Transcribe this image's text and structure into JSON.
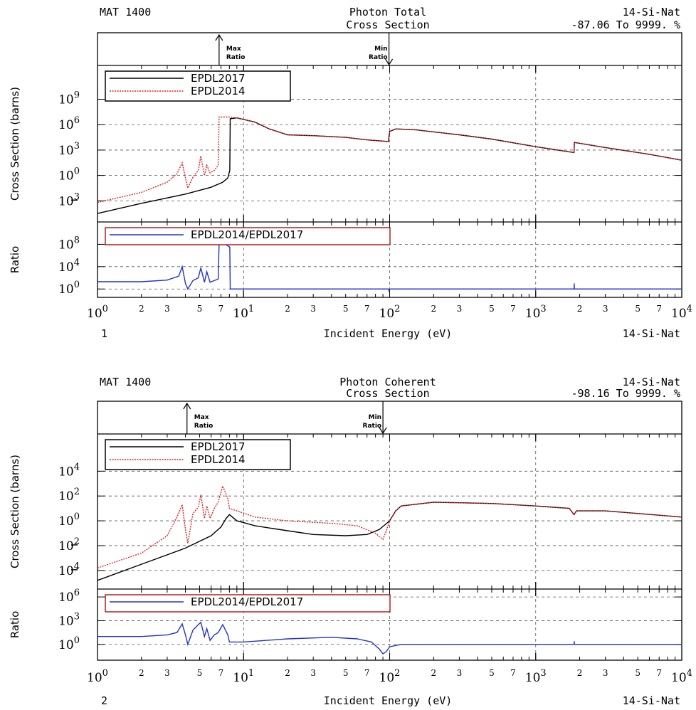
{
  "chart_data": [
    {
      "type": "line",
      "panel_id": "1",
      "mat": "MAT 1400",
      "title_line1": "Photon Total",
      "title_line2": "Cross Section",
      "range_text": "-87.06 To 9999. %",
      "material": "14-Si-Nat",
      "xlabel": "Incident Energy (eV)",
      "ylabel_top": "Cross Section (barns)",
      "ylabel_bottom": "Ratio",
      "x_scale": "log",
      "xlim": [
        1,
        10000
      ],
      "grid": true,
      "markers": [
        {
          "label1": "Max",
          "label2": "Ratio",
          "x": 6.8,
          "dir": "up"
        },
        {
          "label1": "Min",
          "label2": "Ratio",
          "x": 99,
          "dir": "down"
        }
      ],
      "top": {
        "y_scale": "log",
        "ylim_exp": [
          -5.5,
          13
        ],
        "ytick_exps": [
          -3,
          0,
          3,
          6,
          9
        ],
        "legend": [
          "EPDL2017",
          "EPDL2014"
        ],
        "series": [
          {
            "name": "EPDL2017",
            "color": "#000000",
            "points": [
              [
                1,
                -4.5
              ],
              [
                2,
                -3.3
              ],
              [
                4,
                -2.2
              ],
              [
                6,
                -1.4
              ],
              [
                7.2,
                -0.8
              ],
              [
                7.8,
                -0.3
              ],
              [
                8.05,
                0.6
              ],
              [
                8.1,
                6.7
              ],
              [
                9,
                6.8
              ],
              [
                12,
                6.3
              ],
              [
                15,
                5.5
              ],
              [
                20,
                4.8
              ],
              [
                30,
                4.7
              ],
              [
                50,
                4.5
              ],
              [
                70,
                4.2
              ],
              [
                98,
                4.0
              ],
              [
                100,
                5.2
              ],
              [
                110,
                5.5
              ],
              [
                150,
                5.4
              ],
              [
                300,
                4.8
              ],
              [
                500,
                4.3
              ],
              [
                1000,
                3.4
              ],
              [
                1830,
                2.7
              ],
              [
                1840,
                3.9
              ],
              [
                3000,
                3.3
              ],
              [
                6000,
                2.5
              ],
              [
                10000,
                1.8
              ]
            ]
          },
          {
            "name": "EPDL2014",
            "color": "#dd2222",
            "points": [
              [
                1,
                -3.2
              ],
              [
                2,
                -2.0
              ],
              [
                3,
                -0.8
              ],
              [
                3.5,
                0.2
              ],
              [
                3.8,
                1.5
              ],
              [
                4.0,
                -0.3
              ],
              [
                4.15,
                -1.5
              ],
              [
                4.5,
                -0.2
              ],
              [
                4.9,
                0.6
              ],
              [
                5.1,
                2.3
              ],
              [
                5.4,
                0.0
              ],
              [
                5.6,
                1.2
              ],
              [
                5.9,
                0.3
              ],
              [
                6.3,
                0.6
              ],
              [
                6.7,
                1.2
              ],
              [
                6.8,
                6.9
              ],
              [
                8,
                6.9
              ],
              [
                9,
                6.8
              ],
              [
                12,
                6.3
              ],
              [
                15,
                5.5
              ],
              [
                20,
                4.8
              ],
              [
                30,
                4.7
              ],
              [
                50,
                4.5
              ],
              [
                70,
                4.2
              ],
              [
                98,
                4.0
              ],
              [
                100,
                5.2
              ],
              [
                110,
                5.5
              ],
              [
                150,
                5.4
              ],
              [
                300,
                4.8
              ],
              [
                500,
                4.3
              ],
              [
                1000,
                3.4
              ],
              [
                1830,
                2.7
              ],
              [
                1840,
                3.9
              ],
              [
                3000,
                3.3
              ],
              [
                6000,
                2.5
              ],
              [
                10000,
                1.8
              ]
            ]
          }
        ]
      },
      "bottom": {
        "y_scale": "log",
        "ylim_exp": [
          -1.5,
          12
        ],
        "ytick_exps": [
          0,
          4,
          8
        ],
        "legend": [
          "EPDL2014/EPDL2017"
        ],
        "series": [
          {
            "name": "EPDL2014/EPDL2017",
            "color": "#2233cc",
            "points": [
              [
                1,
                1.3
              ],
              [
                2,
                1.3
              ],
              [
                3,
                1.6
              ],
              [
                3.6,
                2.3
              ],
              [
                3.8,
                4.0
              ],
              [
                4.0,
                1.0
              ],
              [
                4.15,
                0.0
              ],
              [
                4.5,
                1.5
              ],
              [
                4.9,
                2.0
              ],
              [
                5.1,
                3.8
              ],
              [
                5.4,
                1.2
              ],
              [
                5.6,
                3.1
              ],
              [
                5.9,
                1.2
              ],
              [
                6.3,
                1.5
              ],
              [
                6.7,
                1.8
              ],
              [
                6.8,
                8.2
              ],
              [
                7.5,
                8.0
              ],
              [
                8.05,
                7.5
              ],
              [
                8.1,
                0.0
              ],
              [
                8.2,
                0.0
              ],
              [
                98,
                0.0
              ],
              [
                99,
                -0.3
              ],
              [
                100,
                0.0
              ],
              [
                1830,
                0.0
              ],
              [
                1835,
                1.0
              ],
              [
                1840,
                0.0
              ],
              [
                10000,
                0.0
              ]
            ]
          }
        ]
      }
    },
    {
      "type": "line",
      "panel_id": "2",
      "mat": "MAT 1400",
      "title_line1": "Photon Coherent",
      "title_line2": "Cross Section",
      "range_text": "-98.16 To 9999. %",
      "material": "14-Si-Nat",
      "xlabel": "Incident Energy (eV)",
      "ylabel_top": "Cross Section (barns)",
      "ylabel_bottom": "Ratio",
      "x_scale": "log",
      "xlim": [
        1,
        10000
      ],
      "grid": true,
      "markers": [
        {
          "label1": "Max",
          "label2": "Ratio",
          "x": 4.1,
          "dir": "up"
        },
        {
          "label1": "Min",
          "label2": "Ratio",
          "x": 90,
          "dir": "down"
        }
      ],
      "top": {
        "y_scale": "log",
        "ylim_exp": [
          -5.5,
          7
        ],
        "ytick_exps": [
          -4,
          -2,
          0,
          2,
          4
        ],
        "legend": [
          "EPDL2017",
          "EPDL2014"
        ],
        "series": [
          {
            "name": "EPDL2017",
            "color": "#000000",
            "points": [
              [
                1,
                -4.8
              ],
              [
                2,
                -3.5
              ],
              [
                4,
                -2.2
              ],
              [
                6,
                -1.2
              ],
              [
                7,
                -0.5
              ],
              [
                7.6,
                0.2
              ],
              [
                8,
                0.5
              ],
              [
                9,
                0.0
              ],
              [
                12,
                -0.4
              ],
              [
                20,
                -0.8
              ],
              [
                30,
                -1.1
              ],
              [
                50,
                -1.2
              ],
              [
                70,
                -1.1
              ],
              [
                85,
                -0.7
              ],
              [
                100,
                0.0
              ],
              [
                110,
                0.8
              ],
              [
                120,
                1.2
              ],
              [
                200,
                1.5
              ],
              [
                500,
                1.4
              ],
              [
                1000,
                1.2
              ],
              [
                1700,
                1.0
              ],
              [
                1830,
                0.5
              ],
              [
                1900,
                0.8
              ],
              [
                3000,
                0.8
              ],
              [
                10000,
                0.3
              ]
            ]
          },
          {
            "name": "EPDL2014",
            "color": "#dd2222",
            "points": [
              [
                1,
                -3.8
              ],
              [
                2,
                -2.6
              ],
              [
                3,
                -1.2
              ],
              [
                3.5,
                0.3
              ],
              [
                3.8,
                1.3
              ],
              [
                4.0,
                -0.7
              ],
              [
                4.15,
                -1.8
              ],
              [
                4.5,
                0.6
              ],
              [
                4.9,
                1.1
              ],
              [
                5.1,
                2.1
              ],
              [
                5.4,
                0.2
              ],
              [
                5.6,
                1.2
              ],
              [
                5.9,
                0.2
              ],
              [
                6.3,
                1.0
              ],
              [
                6.7,
                1.5
              ],
              [
                7.2,
                2.8
              ],
              [
                7.8,
                1.8
              ],
              [
                8,
                1.0
              ],
              [
                9,
                0.8
              ],
              [
                12,
                0.3
              ],
              [
                20,
                0.0
              ],
              [
                40,
                -0.2
              ],
              [
                60,
                -0.4
              ],
              [
                80,
                -1.0
              ],
              [
                90,
                -1.5
              ],
              [
                95,
                -0.8
              ],
              [
                100,
                0.0
              ],
              [
                110,
                0.8
              ],
              [
                120,
                1.2
              ],
              [
                200,
                1.5
              ],
              [
                500,
                1.4
              ],
              [
                1000,
                1.2
              ],
              [
                1700,
                1.0
              ],
              [
                1830,
                0.5
              ],
              [
                1900,
                0.8
              ],
              [
                3000,
                0.8
              ],
              [
                10000,
                0.3
              ]
            ]
          }
        ]
      },
      "bottom": {
        "y_scale": "log",
        "ylim_exp": [
          -2,
          7
        ],
        "ytick_exps": [
          0,
          3,
          6
        ],
        "legend": [
          "EPDL2014/EPDL2017"
        ],
        "series": [
          {
            "name": "EPDL2014/EPDL2017",
            "color": "#2233cc",
            "points": [
              [
                1,
                1.0
              ],
              [
                2,
                1.0
              ],
              [
                3,
                1.2
              ],
              [
                3.5,
                1.5
              ],
              [
                3.8,
                2.6
              ],
              [
                4.0,
                1.2
              ],
              [
                4.15,
                0.0
              ],
              [
                4.5,
                1.8
              ],
              [
                4.9,
                2.5
              ],
              [
                5.1,
                2.8
              ],
              [
                5.4,
                1.0
              ],
              [
                5.6,
                2.0
              ],
              [
                5.9,
                0.5
              ],
              [
                6.3,
                1.2
              ],
              [
                6.7,
                1.5
              ],
              [
                7.2,
                2.5
              ],
              [
                7.8,
                1.2
              ],
              [
                8,
                0.3
              ],
              [
                10,
                0.3
              ],
              [
                20,
                0.7
              ],
              [
                40,
                0.9
              ],
              [
                60,
                0.7
              ],
              [
                75,
                0.3
              ],
              [
                85,
                -0.6
              ],
              [
                90,
                -1.2
              ],
              [
                95,
                -0.9
              ],
              [
                100,
                -0.3
              ],
              [
                120,
                0.0
              ],
              [
                1830,
                0.0
              ],
              [
                1835,
                0.4
              ],
              [
                1840,
                0.0
              ],
              [
                10000,
                0.0
              ]
            ]
          }
        ]
      }
    }
  ],
  "x_axis": {
    "major_labels": [
      {
        "exp": 0,
        "base": "10",
        "sup": "0"
      },
      {
        "exp": 1,
        "base": "10",
        "sup": "1"
      },
      {
        "exp": 2,
        "base": "10",
        "sup": "2"
      },
      {
        "exp": 3,
        "base": "10",
        "sup": "3"
      },
      {
        "exp": 4,
        "base": "10",
        "sup": "4"
      }
    ],
    "minor_labels": [
      "2",
      "3",
      "5",
      "7"
    ]
  }
}
